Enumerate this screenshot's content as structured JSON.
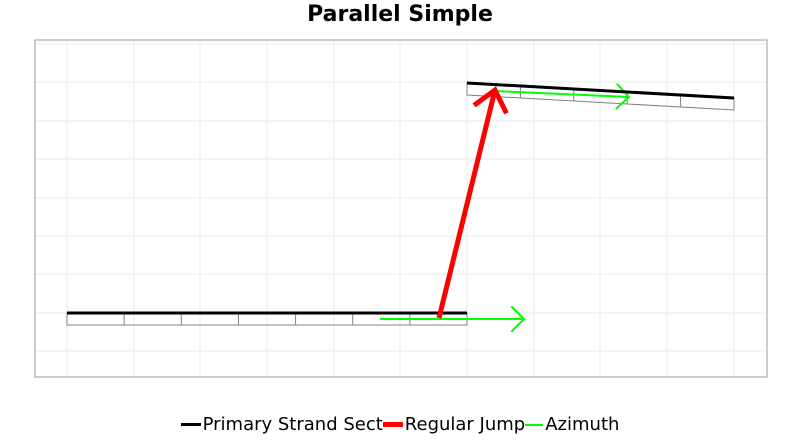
{
  "title": "Parallel Simple",
  "legend": [
    {
      "label": "Primary Strand Sect",
      "color": "#000000"
    },
    {
      "label": "Regular Jump",
      "color": "#ff0000"
    },
    {
      "label": "Azimuth",
      "color": "#00ff00"
    }
  ],
  "chart_data": {
    "type": "diagram",
    "title": "Parallel Simple",
    "grid": true,
    "axes_labels_shown": false,
    "colors": {
      "primary_strand": "#000000",
      "regular_jump": "#ff0000",
      "azimuth": "#00ff00",
      "subsection_outline": "#808080",
      "grid": "#ebebeb"
    },
    "sections": [
      {
        "name": "Primary Strand Sect",
        "subsections": 7
      },
      {
        "name": "Primary Strand Sect",
        "subsections": 5
      }
    ],
    "jumps": [
      {
        "name": "Regular Jump",
        "from_section": 0,
        "to_section": 1
      }
    ]
  }
}
